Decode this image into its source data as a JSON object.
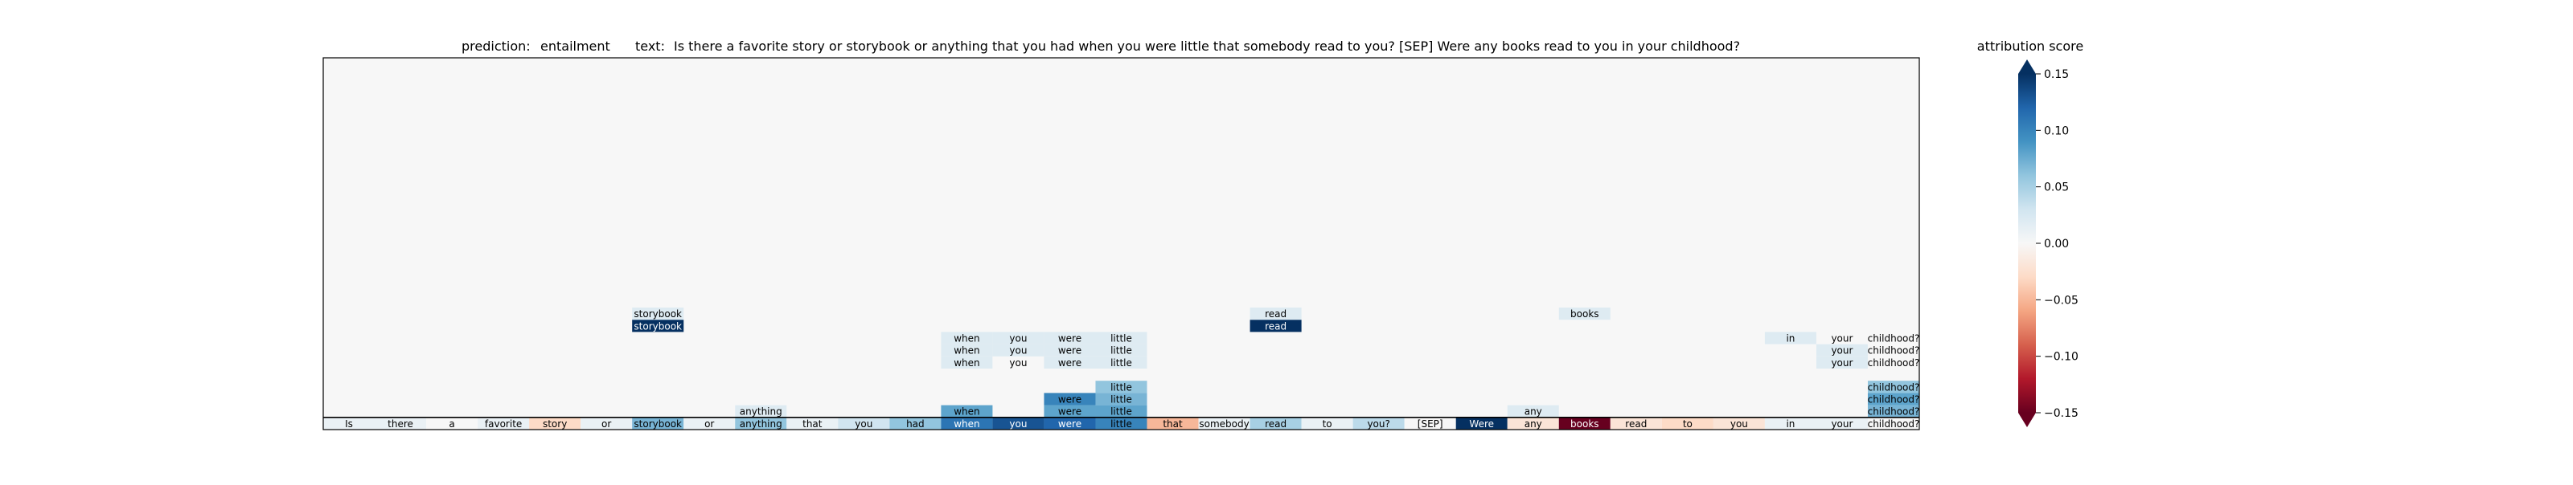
{
  "chart_data": [
    {
      "type": "heatmap",
      "header": {
        "prediction_label": "prediction:",
        "prediction_value": "entailment",
        "text_label": "text:",
        "text_value": "Is there a favorite story or storybook or anything that you had when you were little that somebody read to you? [SEP] Were any books read to you in your childhood?"
      },
      "tokens": [
        "Is",
        "there",
        "a",
        "favorite",
        "story",
        "or",
        "storybook",
        "or",
        "anything",
        "that",
        "you",
        "had",
        "when",
        "you",
        "were",
        "little",
        "that",
        "somebody",
        "read",
        "to",
        "you?",
        "[SEP]",
        "Were",
        "any",
        "books",
        "read",
        "to",
        "you",
        "in",
        "your",
        "childhood?"
      ],
      "base_scores": [
        0.01,
        0.01,
        0.0,
        0.01,
        -0.03,
        0.01,
        0.07,
        0.01,
        0.06,
        0.01,
        0.03,
        0.06,
        0.11,
        0.13,
        0.12,
        0.1,
        -0.05,
        0.01,
        0.05,
        0.01,
        0.04,
        0.0,
        0.16,
        -0.02,
        -0.15,
        -0.02,
        -0.03,
        -0.02,
        0.01,
        0.01,
        0.0
      ],
      "cells": [
        {
          "row": 1,
          "col": 8,
          "label": "anything",
          "score": 0.02
        },
        {
          "row": 1,
          "col": 12,
          "label": "when",
          "score": 0.08
        },
        {
          "row": 1,
          "col": 14,
          "label": "were",
          "score": 0.08
        },
        {
          "row": 1,
          "col": 15,
          "label": "little",
          "score": 0.08
        },
        {
          "row": 1,
          "col": 23,
          "label": "any",
          "score": 0.02
        },
        {
          "row": 1,
          "col": 30,
          "label": "childhood?",
          "score": 0.07
        },
        {
          "row": 2,
          "col": 14,
          "label": "were",
          "score": 0.1
        },
        {
          "row": 2,
          "col": 15,
          "label": "little",
          "score": 0.07
        },
        {
          "row": 2,
          "col": 30,
          "label": "childhood?",
          "score": 0.08
        },
        {
          "row": 3,
          "col": 15,
          "label": "little",
          "score": 0.06
        },
        {
          "row": 3,
          "col": 30,
          "label": "childhood?",
          "score": 0.06
        },
        {
          "row": 5,
          "col": 12,
          "label": "when",
          "score": 0.02
        },
        {
          "row": 5,
          "col": 13,
          "label": "you",
          "score": 0.0
        },
        {
          "row": 5,
          "col": 14,
          "label": "were",
          "score": 0.02
        },
        {
          "row": 5,
          "col": 15,
          "label": "little",
          "score": 0.02
        },
        {
          "row": 5,
          "col": 29,
          "label": "your",
          "score": 0.02
        },
        {
          "row": 5,
          "col": 30,
          "label": "childhood?",
          "score": 0.0
        },
        {
          "row": 6,
          "col": 12,
          "label": "when",
          "score": 0.02
        },
        {
          "row": 6,
          "col": 13,
          "label": "you",
          "score": 0.02
        },
        {
          "row": 6,
          "col": 14,
          "label": "were",
          "score": 0.02
        },
        {
          "row": 6,
          "col": 15,
          "label": "little",
          "score": 0.02
        },
        {
          "row": 6,
          "col": 29,
          "label": "your",
          "score": 0.02
        },
        {
          "row": 6,
          "col": 30,
          "label": "childhood?",
          "score": 0.0
        },
        {
          "row": 7,
          "col": 12,
          "label": "when",
          "score": 0.02
        },
        {
          "row": 7,
          "col": 13,
          "label": "you",
          "score": 0.02
        },
        {
          "row": 7,
          "col": 14,
          "label": "were",
          "score": 0.02
        },
        {
          "row": 7,
          "col": 15,
          "label": "little",
          "score": 0.02
        },
        {
          "row": 7,
          "col": 28,
          "label": "in",
          "score": 0.02
        },
        {
          "row": 7,
          "col": 29,
          "label": "your",
          "score": 0.0
        },
        {
          "row": 7,
          "col": 30,
          "label": "childhood?",
          "score": 0.0
        },
        {
          "row": 8,
          "col": 6,
          "label": "storybook",
          "score": 0.15
        },
        {
          "row": 8,
          "col": 18,
          "label": "read",
          "score": 0.15
        },
        {
          "row": 9,
          "col": 6,
          "label": "storybook",
          "score": 0.02
        },
        {
          "row": 9,
          "col": 18,
          "label": "read",
          "score": 0.02
        },
        {
          "row": 9,
          "col": 24,
          "label": "books",
          "score": 0.02
        }
      ],
      "background_score": 0.0,
      "colorbar": {
        "label": "attribution score",
        "min": -0.15,
        "max": 0.15,
        "ticks": [
          0.15,
          0.1,
          0.05,
          0.0,
          -0.05,
          -0.1,
          -0.15
        ],
        "tick_labels": [
          "0.15",
          "0.10",
          "0.05",
          "0.00",
          "−0.05",
          "−0.10",
          "−0.15"
        ],
        "colormap": "RdBu",
        "extend": "both"
      },
      "grid": false
    }
  ]
}
